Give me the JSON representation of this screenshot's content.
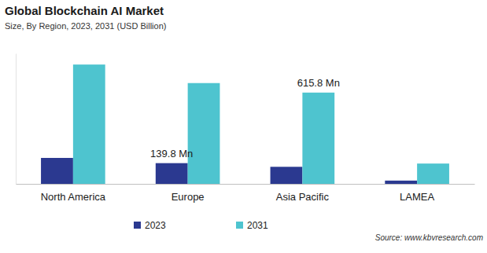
{
  "chart_data": {
    "type": "bar",
    "title": "Global Blockchain AI Market",
    "subtitle": "Size, By Region, 2023, 2031 (USD Billion)",
    "categories": [
      "North America",
      "Europe",
      "Asia Pacific",
      "LAMEA"
    ],
    "series": [
      {
        "name": "2023",
        "color": "#2b3990",
        "values": [
          175,
          139.8,
          115,
          22
        ],
        "value_labels": [
          null,
          "139.8 Mn",
          null,
          null
        ]
      },
      {
        "name": "2031",
        "color": "#4ec4cf",
        "values": [
          805,
          680,
          615.8,
          137
        ],
        "value_labels": [
          null,
          null,
          "615.8 Mn",
          null
        ]
      }
    ],
    "ylim": [
      0,
      880
    ],
    "tick_labels": "x",
    "legend": "bottom",
    "data_labels": true,
    "annotations": [
      "Source: www.kbvresearch.com"
    ]
  }
}
